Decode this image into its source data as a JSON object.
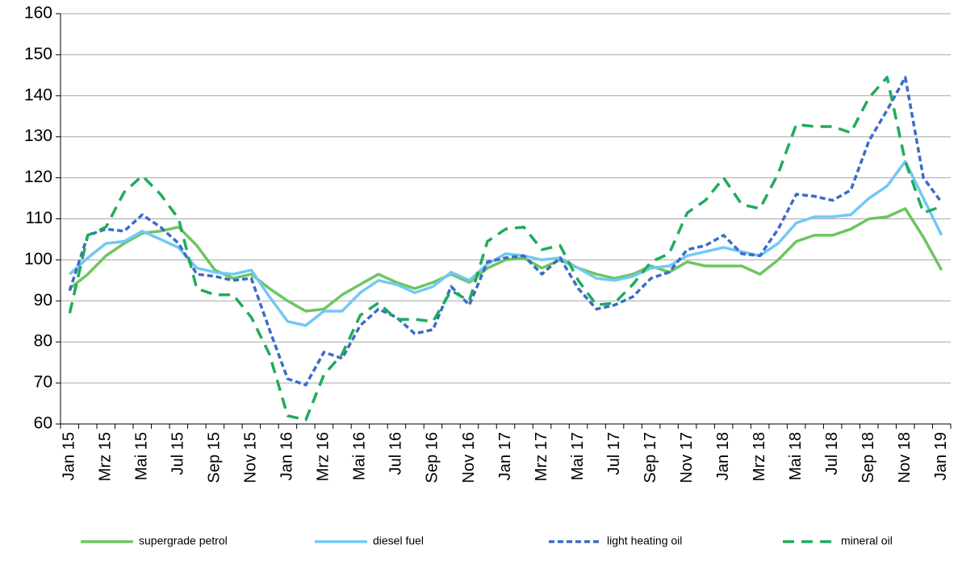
{
  "chart_data": {
    "type": "line",
    "categories": [
      "Jan 15",
      null,
      "Mrz 15",
      null,
      "Mai 15",
      null,
      "Jul 15",
      null,
      "Sep 15",
      null,
      "Nov 15",
      null,
      "Jan 16",
      null,
      "Mrz 16",
      null,
      "Mai 16",
      null,
      "Jul 16",
      null,
      "Sep 16",
      null,
      "Nov 16",
      null,
      "Jan 17",
      null,
      "Mrz 17",
      null,
      "Mai 17",
      null,
      "Jul 17",
      null,
      "Sep 17",
      null,
      "Nov 17",
      null,
      "Jan 18",
      null,
      "Mrz 18",
      null,
      "Mai 18",
      null,
      "Jul 18",
      null,
      "Sep 18",
      null,
      "Nov 18",
      null,
      "Jan 19"
    ],
    "series": [
      {
        "name": "supergrade petrol",
        "color": "#6cc65f",
        "line_style": "solid",
        "values": [
          93,
          96.5,
          101,
          104,
          106.5,
          107,
          108,
          103.5,
          97.5,
          95.5,
          96.5,
          93,
          90,
          87.5,
          88,
          91.5,
          94,
          96.5,
          94.5,
          93,
          94.5,
          96.5,
          94.5,
          98,
          100,
          100.5,
          98,
          100,
          98,
          96.5,
          95.5,
          96.5,
          98.5,
          97,
          99.5,
          98.5,
          98.5,
          98.5,
          96.5,
          100,
          104.5,
          106,
          106,
          107.5,
          110,
          110.5,
          112.5,
          105.5,
          97.5
        ]
      },
      {
        "name": "diesel fuel",
        "color": "#72c8f4",
        "line_style": "solid",
        "values": [
          96.5,
          100.5,
          104,
          104.5,
          107,
          105,
          103,
          98,
          97,
          96.5,
          97.5,
          91,
          85,
          84,
          87.5,
          87.5,
          92,
          95,
          94,
          92,
          93.5,
          97,
          95,
          99,
          101.5,
          101,
          100,
          100.5,
          98,
          95.5,
          95,
          96,
          98,
          98.5,
          101,
          102,
          103,
          102,
          101,
          104,
          109,
          110.5,
          110.5,
          111,
          115,
          118,
          124,
          115,
          106
        ]
      },
      {
        "name": "light heating oil",
        "color": "#3b6cc6",
        "line_style": "short-dash",
        "values": [
          92.5,
          106,
          107.5,
          107,
          111,
          108,
          104,
          96.5,
          96,
          95,
          95.5,
          83,
          71,
          69.5,
          77.5,
          76,
          84,
          88,
          86,
          82,
          83,
          93.5,
          89,
          99.5,
          100.5,
          101,
          96.5,
          100.5,
          93,
          88,
          89,
          91,
          95.5,
          97,
          102.5,
          103.5,
          106,
          101.5,
          101,
          107.5,
          116,
          115.5,
          114.5,
          117,
          129,
          136.5,
          144.5,
          120,
          114
        ]
      },
      {
        "name": "mineral oil",
        "color": "#1fab5c",
        "line_style": "long-dash",
        "values": [
          87,
          106,
          108,
          116.5,
          120.5,
          116,
          110,
          93,
          91.5,
          91.5,
          86,
          77,
          62,
          61,
          72,
          77,
          86.5,
          89.5,
          85.5,
          85.5,
          85,
          92.5,
          90,
          104.5,
          107.5,
          108,
          102.5,
          103.5,
          95,
          89,
          89.5,
          94,
          99.5,
          101.5,
          111.5,
          114.5,
          120,
          113.5,
          112.5,
          121,
          133,
          132.5,
          132.5,
          131,
          139.5,
          144.5,
          124,
          111.5,
          113
        ]
      }
    ],
    "ylim": [
      60,
      160
    ],
    "yticks": [
      60,
      70,
      80,
      90,
      100,
      110,
      120,
      130,
      140,
      150,
      160
    ],
    "grid": true,
    "legend": "bottom"
  }
}
